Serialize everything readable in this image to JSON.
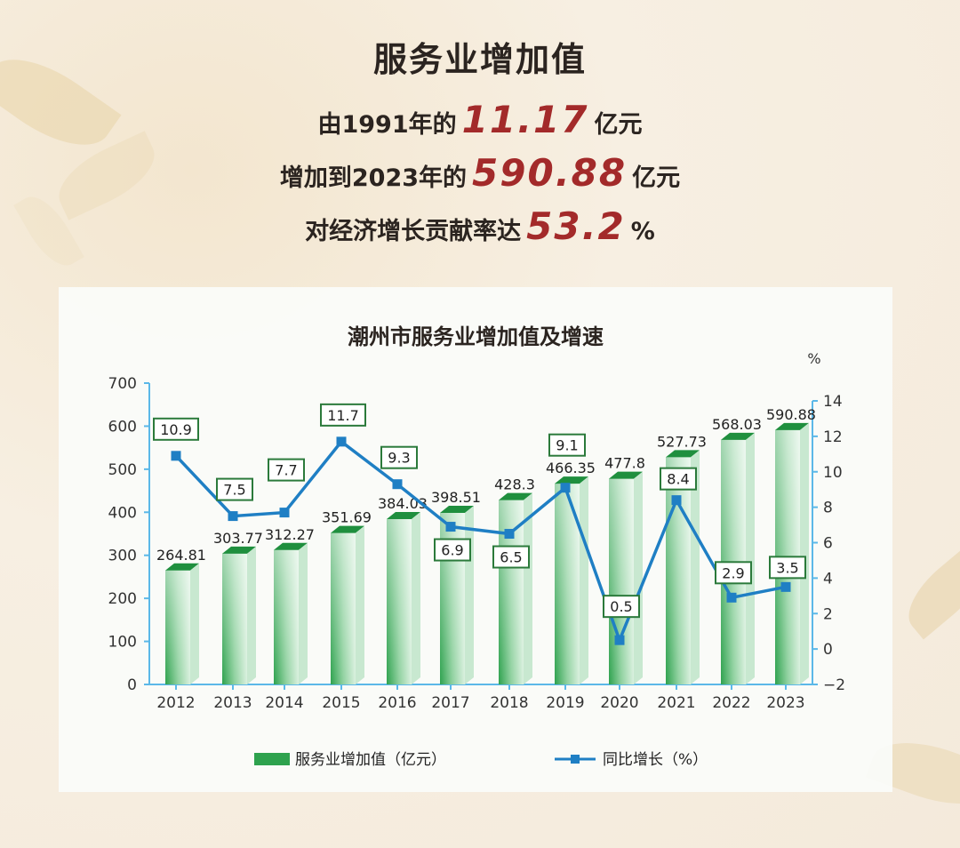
{
  "header": {
    "title": "服务业增加值",
    "line1": {
      "pre": "由1991年的",
      "value": "11.17",
      "post": "亿元"
    },
    "line2": {
      "pre": "增加到2023年的",
      "value": "590.88",
      "post": "亿元"
    },
    "line3": {
      "pre": "对经济增长贡献率达",
      "value": "53.2",
      "post": "%"
    }
  },
  "chart_data": {
    "type": "bar",
    "title": "潮州市服务业增加值及增速",
    "categories": [
      "2012",
      "2013",
      "2014",
      "2015",
      "2016",
      "2017",
      "2018",
      "2019",
      "2020",
      "2021",
      "2022",
      "2023"
    ],
    "series": [
      {
        "name": "服务业增加值（亿元）",
        "type": "bar",
        "axis": "left",
        "values": [
          264.81,
          303.77,
          312.27,
          351.69,
          384.03,
          398.51,
          428.3,
          466.35,
          477.8,
          527.73,
          568.03,
          590.88
        ],
        "labels": [
          "264.81",
          "303.77",
          "312.27",
          "351.69",
          "384.03",
          "398.51",
          "428.3",
          "466.35",
          "477.8",
          "527.73",
          "568.03",
          "590.88"
        ]
      },
      {
        "name": "同比增长（%）",
        "type": "line",
        "axis": "right",
        "values": [
          10.9,
          7.5,
          7.7,
          11.7,
          9.3,
          6.9,
          6.5,
          9.1,
          0.5,
          8.4,
          2.9,
          3.5
        ],
        "labels": [
          "10.9",
          "7.5",
          "7.7",
          "11.7",
          "9.3",
          "6.9",
          "6.5",
          "9.1",
          "0.5",
          "8.4",
          "2.9",
          "3.5"
        ]
      }
    ],
    "y_left": {
      "range": [
        0,
        700
      ],
      "ticks": [
        "0",
        "100",
        "200",
        "300",
        "400",
        "500",
        "600",
        "700"
      ]
    },
    "y_right": {
      "range": [
        -2,
        14
      ],
      "ticks": [
        "−2",
        "0",
        "2",
        "4",
        "6",
        "8",
        "10",
        "12",
        "14"
      ],
      "unit": "%"
    },
    "legend_position": "bottom",
    "colors": {
      "bar": "#2ea24e",
      "bar_top": "#1f8f3e",
      "line": "#1f7fc4",
      "axis": "#5bb8e8",
      "label_box": "#2b7a3b"
    }
  }
}
